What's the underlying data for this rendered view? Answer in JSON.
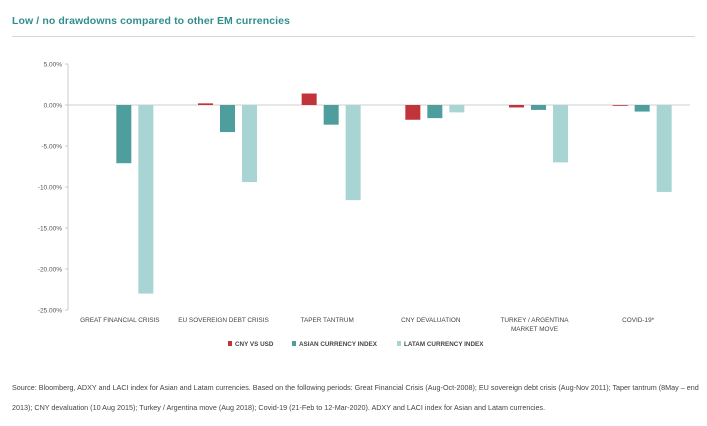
{
  "title": "Low / no drawdowns compared to other EM currencies",
  "source_note": "Source: Bloomberg, ADXY and LACI index for Asian and Latam currencies. Based on the following periods: Great Financial Crisis (Aug-Oct-2008); EU sovereign debt crisis (Aug-Nov 2011); Taper tantrum (8May – end 2013); CNY devaluation (10 Aug 2015); Turkey / Argentina move (Aug 2018); Covid-19 (21-Feb to 12-Mar-2020). ADXY and LACI index for Asian and Latam currencies.",
  "colors": {
    "cny_vs_usd": "#c0343a",
    "asian_currency_index": "#4f9e9e",
    "latam_currency_index": "#a8d5d4",
    "title": "#2f8f8a"
  },
  "chart_data": {
    "type": "bar",
    "title": "Low / no drawdowns compared to other EM currencies",
    "xlabel": "",
    "ylabel": "",
    "ylim": [
      -25,
      5
    ],
    "yticks": [
      5,
      0,
      -5,
      -10,
      -15,
      -20,
      -25
    ],
    "ytick_labels": [
      "5.00%",
      "0.00%",
      "-5.00%",
      "-10.00%",
      "-15.00%",
      "-20.00%",
      "-25.00%"
    ],
    "grid": false,
    "legend_position": "bottom",
    "categories": [
      "GREAT FINANCIAL CRISIS",
      "EU SOVEREIGN DEBT CRISIS",
      "TAPER TANTRUM",
      "CNY DEVALUATION",
      "TURKEY / ARGENTINA MARKET MOVE",
      "COVID-19*"
    ],
    "category_lines": [
      [
        "GREAT FINANCIAL CRISIS"
      ],
      [
        "EU SOVEREIGN DEBT CRISIS"
      ],
      [
        "TAPER TANTRUM"
      ],
      [
        "CNY DEVALUATION"
      ],
      [
        "TURKEY / ARGENTINA",
        "MARKET MOVE"
      ],
      [
        "COVID-19*"
      ]
    ],
    "series": [
      {
        "name": "CNY VS USD",
        "color": "#c0343a",
        "values": [
          0.0,
          0.2,
          1.4,
          -1.8,
          -0.3,
          -0.1
        ]
      },
      {
        "name": "ASIAN CURRENCY INDEX",
        "color": "#4f9e9e",
        "values": [
          -7.1,
          -3.3,
          -2.4,
          -1.6,
          -0.6,
          -0.8
        ]
      },
      {
        "name": "LATAM CURRENCY INDEX",
        "color": "#a8d5d4",
        "values": [
          -23.0,
          -9.4,
          -11.6,
          -0.9,
          -7.0,
          -10.6
        ]
      }
    ]
  }
}
